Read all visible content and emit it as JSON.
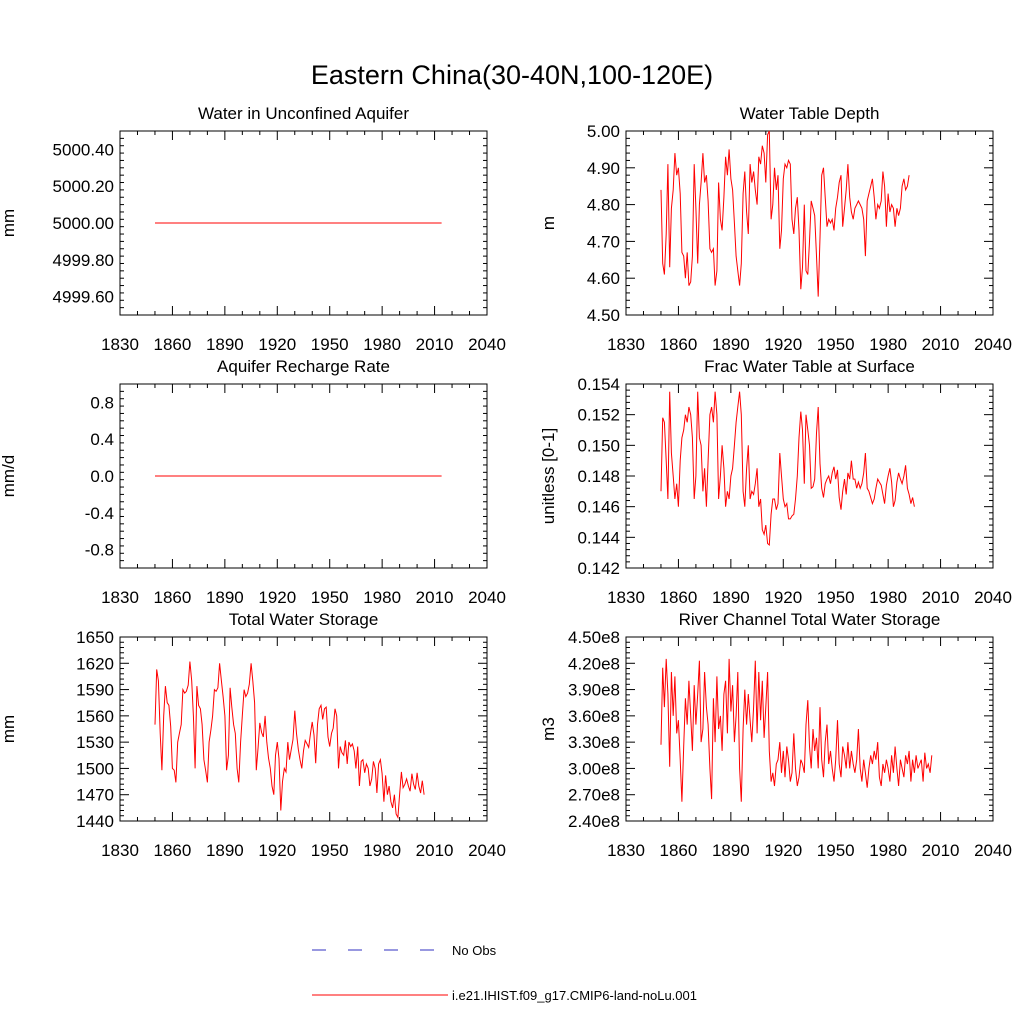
{
  "title": "Eastern China(30-40N,100-120E)",
  "colors": {
    "model": "#ff0000",
    "obs": "#3030c0",
    "axis": "#000000"
  },
  "legend": {
    "obs_label": "No Obs",
    "model_label": "i.e21.IHIST.f09_g17.CMIP6-land-noLu.001"
  },
  "chart_data": [
    {
      "type": "line",
      "title": "Water in Unconfined Aquifer",
      "ylabel": "mm",
      "xlim": [
        1830,
        2040
      ],
      "ylim": [
        4999.5,
        5000.5
      ],
      "xticks": [
        1830,
        1860,
        1890,
        1920,
        1950,
        1980,
        2010,
        2040
      ],
      "xtick_labels": [
        "1830",
        "1860",
        "1890",
        "1920",
        "1950",
        "1980",
        "2010",
        "2040"
      ],
      "yticks": [
        4999.6,
        4999.8,
        5000.0,
        5000.2,
        5000.4
      ],
      "ytick_labels": [
        "4999.60",
        "4999.80",
        "5000.00",
        "5000.20",
        "5000.40"
      ],
      "series": [
        {
          "x_start": 1850,
          "values": [
            5000.0,
            5000.0
          ],
          "x": [
            1850,
            2014
          ]
        }
      ]
    },
    {
      "type": "line",
      "title": "Water Table Depth",
      "ylabel": "m",
      "xlim": [
        1830,
        2040
      ],
      "ylim": [
        4.5,
        5.0
      ],
      "xticks": [
        1830,
        1860,
        1890,
        1920,
        1950,
        1980,
        2010,
        2040
      ],
      "xtick_labels": [
        "1830",
        "1860",
        "1890",
        "1920",
        "1950",
        "1980",
        "2010",
        "2040"
      ],
      "yticks": [
        4.5,
        4.6,
        4.7,
        4.8,
        4.9,
        5.0
      ],
      "ytick_labels": [
        "4.50",
        "4.60",
        "4.70",
        "4.80",
        "4.90",
        "5.00"
      ],
      "series": [
        {
          "x_start": 1850,
          "values": [
            4.84,
            4.64,
            4.61,
            4.72,
            4.91,
            4.63,
            4.79,
            4.84,
            4.94,
            4.88,
            4.9,
            4.83,
            4.67,
            4.66,
            4.6,
            4.67,
            4.58,
            4.59,
            4.66,
            4.91,
            4.79,
            4.64,
            4.8,
            4.86,
            4.94,
            4.86,
            4.88,
            4.81,
            4.68,
            4.67,
            4.68,
            4.58,
            4.62,
            4.86,
            4.76,
            4.73,
            4.82,
            4.93,
            4.88,
            4.95,
            4.87,
            4.84,
            4.75,
            4.66,
            4.62,
            4.58,
            4.64,
            4.83,
            4.89,
            4.78,
            4.72,
            4.91,
            4.86,
            4.89,
            4.84,
            4.8,
            4.93,
            4.91,
            4.96,
            4.94,
            4.86,
            4.99,
            5.0,
            4.76,
            4.8,
            4.9,
            4.84,
            4.88,
            4.68,
            4.73,
            4.87,
            4.91,
            4.9,
            4.92,
            4.91,
            4.76,
            4.72,
            4.79,
            4.82,
            4.73,
            4.57,
            4.63,
            4.8,
            4.62,
            4.61,
            4.7,
            4.81,
            4.79,
            4.77,
            4.66,
            4.55,
            4.71,
            4.88,
            4.9,
            4.82,
            4.74,
            4.76,
            4.75,
            4.76,
            4.73,
            4.79,
            4.82,
            4.86,
            4.88,
            4.74,
            4.79,
            4.84,
            4.91,
            4.82,
            4.78,
            4.76,
            4.79,
            4.8,
            4.81,
            4.8,
            4.79,
            4.76,
            4.66,
            4.81,
            4.83,
            4.85,
            4.87,
            4.82,
            4.76,
            4.8,
            4.79,
            4.81,
            4.89,
            4.85,
            4.74,
            4.83,
            4.78,
            4.8,
            4.79,
            4.74,
            4.79,
            4.77,
            4.79,
            4.85,
            4.87,
            4.84,
            4.85,
            4.88
          ]
        }
      ]
    },
    {
      "type": "line",
      "title": "Aquifer Recharge Rate",
      "ylabel": "mm/d",
      "xlim": [
        1830,
        2040
      ],
      "ylim": [
        -1.0,
        1.0
      ],
      "xticks": [
        1830,
        1860,
        1890,
        1920,
        1950,
        1980,
        2010,
        2040
      ],
      "xtick_labels": [
        "1830",
        "1860",
        "1890",
        "1920",
        "1950",
        "1980",
        "2010",
        "2040"
      ],
      "yticks": [
        -0.8,
        -0.4,
        0.0,
        0.4,
        0.8
      ],
      "ytick_labels": [
        "-0.8",
        "-0.4",
        "0.0",
        "0.4",
        "0.8"
      ],
      "series": [
        {
          "values": [
            0.0,
            0.0
          ],
          "x": [
            1850,
            2014
          ]
        }
      ]
    },
    {
      "type": "line",
      "title": "Frac Water Table at Surface",
      "ylabel": "unitless [0-1]",
      "xlim": [
        1830,
        2040
      ],
      "ylim": [
        0.142,
        0.154
      ],
      "xticks": [
        1830,
        1860,
        1890,
        1920,
        1950,
        1980,
        2010,
        2040
      ],
      "xtick_labels": [
        "1830",
        "1860",
        "1890",
        "1920",
        "1950",
        "1980",
        "2010",
        "2040"
      ],
      "yticks": [
        0.142,
        0.144,
        0.146,
        0.148,
        0.15,
        0.152,
        0.154
      ],
      "ytick_labels": [
        "0.142",
        "0.144",
        "0.146",
        "0.148",
        "0.150",
        "0.152",
        "0.154"
      ],
      "series": [
        {
          "x_start": 1850,
          "values": [
            0.147,
            0.1518,
            0.1515,
            0.149,
            0.1465,
            0.1535,
            0.1495,
            0.148,
            0.1465,
            0.1475,
            0.146,
            0.149,
            0.1505,
            0.151,
            0.152,
            0.1515,
            0.1525,
            0.152,
            0.1505,
            0.1465,
            0.148,
            0.1535,
            0.1505,
            0.15,
            0.147,
            0.1485,
            0.146,
            0.149,
            0.152,
            0.1525,
            0.1515,
            0.1535,
            0.152,
            0.1465,
            0.148,
            0.15,
            0.1485,
            0.146,
            0.147,
            0.1465,
            0.148,
            0.1485,
            0.15,
            0.1515,
            0.1525,
            0.1535,
            0.152,
            0.147,
            0.146,
            0.1485,
            0.15,
            0.1465,
            0.147,
            0.1468,
            0.1475,
            0.1485,
            0.146,
            0.1465,
            0.1445,
            0.1442,
            0.1448,
            0.1436,
            0.1435,
            0.1455,
            0.1465,
            0.1465,
            0.1458,
            0.1462,
            0.1495,
            0.148,
            0.1465,
            0.146,
            0.1462,
            0.1452,
            0.1452,
            0.1454,
            0.1455,
            0.1465,
            0.148,
            0.1505,
            0.1522,
            0.151,
            0.1475,
            0.152,
            0.151,
            0.15,
            0.1472,
            0.1473,
            0.1478,
            0.1508,
            0.1525,
            0.1488,
            0.1472,
            0.1466,
            0.1475,
            0.1478,
            0.148,
            0.1475,
            0.1482,
            0.1486,
            0.1478,
            0.1484,
            0.1466,
            0.1458,
            0.147,
            0.1478,
            0.1468,
            0.1482,
            0.1478,
            0.149,
            0.1478,
            0.1478,
            0.1472,
            0.1476,
            0.1472,
            0.1475,
            0.1482,
            0.1495,
            0.1472,
            0.147,
            0.1466,
            0.1462,
            0.1465,
            0.1472,
            0.1478,
            0.1476,
            0.1474,
            0.1468,
            0.1462,
            0.1474,
            0.148,
            0.1485,
            0.1476,
            0.146,
            0.1464,
            0.1476,
            0.1482,
            0.1478,
            0.1475,
            0.148,
            0.1487,
            0.1472,
            0.1468,
            0.1462,
            0.1466,
            0.146
          ]
        }
      ]
    },
    {
      "type": "line",
      "title": "Total Water Storage",
      "ylabel": "mm",
      "xlim": [
        1830,
        2040
      ],
      "ylim": [
        1440,
        1650
      ],
      "xticks": [
        1830,
        1860,
        1890,
        1920,
        1950,
        1980,
        2010,
        2040
      ],
      "xtick_labels": [
        "1830",
        "1860",
        "1890",
        "1920",
        "1950",
        "1980",
        "2010",
        "2040"
      ],
      "yticks": [
        1440,
        1470,
        1500,
        1530,
        1560,
        1590,
        1620,
        1650
      ],
      "ytick_labels": [
        "1440",
        "1470",
        "1500",
        "1530",
        "1560",
        "1590",
        "1620",
        "1650"
      ],
      "series": [
        {
          "x_start": 1850,
          "values": [
            1550,
            1613,
            1600,
            1540,
            1498,
            1560,
            1594,
            1575,
            1572,
            1548,
            1500,
            1498,
            1484,
            1530,
            1540,
            1550,
            1590,
            1586,
            1588,
            1595,
            1622,
            1600,
            1560,
            1500,
            1594,
            1572,
            1568,
            1550,
            1510,
            1498,
            1484,
            1530,
            1544,
            1560,
            1590,
            1588,
            1592,
            1620,
            1600,
            1582,
            1560,
            1498,
            1515,
            1592,
            1570,
            1550,
            1540,
            1500,
            1484,
            1530,
            1560,
            1590,
            1582,
            1586,
            1596,
            1620,
            1600,
            1575,
            1498,
            1524,
            1552,
            1541,
            1536,
            1560,
            1530,
            1512,
            1500,
            1480,
            1470,
            1515,
            1530,
            1511,
            1452,
            1485,
            1500,
            1496,
            1530,
            1510,
            1522,
            1533,
            1566,
            1540,
            1522,
            1510,
            1500,
            1520,
            1532,
            1528,
            1524,
            1540,
            1553,
            1538,
            1506,
            1550,
            1568,
            1572,
            1556,
            1568,
            1570,
            1536,
            1525,
            1540,
            1546,
            1568,
            1560,
            1500,
            1525,
            1518,
            1515,
            1532,
            1505,
            1530,
            1525,
            1528,
            1520,
            1500,
            1525,
            1480,
            1508,
            1510,
            1495,
            1505,
            1500,
            1480,
            1488,
            1508,
            1500,
            1472,
            1505,
            1510,
            1494,
            1462,
            1492,
            1470,
            1480,
            1462,
            1455,
            1470,
            1448,
            1444,
            1470,
            1496,
            1478,
            1482,
            1488,
            1480,
            1474,
            1494,
            1482,
            1476,
            1495,
            1480,
            1472,
            1486,
            1470
          ]
        }
      ]
    },
    {
      "type": "line",
      "title": "River Channel Total Water Storage",
      "ylabel": "m3",
      "xlim": [
        1830,
        2040
      ],
      "ylim": [
        240000000.0,
        450000000.0
      ],
      "xticks": [
        1830,
        1860,
        1890,
        1920,
        1950,
        1980,
        2010,
        2040
      ],
      "xtick_labels": [
        "1830",
        "1860",
        "1890",
        "1920",
        "1950",
        "1980",
        "2010",
        "2040"
      ],
      "yticks": [
        240000000.0,
        270000000.0,
        300000000.0,
        330000000.0,
        360000000.0,
        390000000.0,
        420000000.0,
        450000000.0
      ],
      "ytick_labels": [
        "2.40e8",
        "2.70e8",
        "3.00e8",
        "3.30e8",
        "3.60e8",
        "3.90e8",
        "4.20e8",
        "4.50e8"
      ],
      "series": [
        {
          "x_start": 1850,
          "values": [
            327000000.0,
            415000000.0,
            370000000.0,
            425000000.0,
            385000000.0,
            302000000.0,
            410000000.0,
            360000000.0,
            405000000.0,
            340000000.0,
            355000000.0,
            310000000.0,
            262000000.0,
            325000000.0,
            380000000.0,
            350000000.0,
            400000000.0,
            360000000.0,
            320000000.0,
            395000000.0,
            350000000.0,
            385000000.0,
            423000000.0,
            330000000.0,
            345000000.0,
            410000000.0,
            370000000.0,
            350000000.0,
            300000000.0,
            265000000.0,
            380000000.0,
            330000000.0,
            405000000.0,
            345000000.0,
            360000000.0,
            320000000.0,
            385000000.0,
            400000000.0,
            340000000.0,
            425000000.0,
            365000000.0,
            395000000.0,
            330000000.0,
            360000000.0,
            410000000.0,
            300000000.0,
            262000000.0,
            345000000.0,
            390000000.0,
            350000000.0,
            385000000.0,
            355000000.0,
            330000000.0,
            370000000.0,
            423000000.0,
            340000000.0,
            410000000.0,
            355000000.0,
            400000000.0,
            335000000.0,
            370000000.0,
            410000000.0,
            320000000.0,
            285000000.0,
            295000000.0,
            280000000.0,
            305000000.0,
            310000000.0,
            330000000.0,
            295000000.0,
            320000000.0,
            290000000.0,
            325000000.0,
            310000000.0,
            285000000.0,
            295000000.0,
            340000000.0,
            300000000.0,
            280000000.0,
            290000000.0,
            310000000.0,
            305000000.0,
            295000000.0,
            350000000.0,
            378000000.0,
            325000000.0,
            300000000.0,
            345000000.0,
            320000000.0,
            335000000.0,
            300000000.0,
            370000000.0,
            310000000.0,
            290000000.0,
            330000000.0,
            350000000.0,
            305000000.0,
            320000000.0,
            300000000.0,
            285000000.0,
            310000000.0,
            355000000.0,
            305000000.0,
            290000000.0,
            325000000.0,
            315000000.0,
            300000000.0,
            330000000.0,
            300000000.0,
            320000000.0,
            305000000.0,
            295000000.0,
            310000000.0,
            345000000.0,
            300000000.0,
            285000000.0,
            310000000.0,
            295000000.0,
            278000000.0,
            300000000.0,
            315000000.0,
            305000000.0,
            320000000.0,
            310000000.0,
            330000000.0,
            290000000.0,
            280000000.0,
            305000000.0,
            295000000.0,
            310000000.0,
            300000000.0,
            285000000.0,
            315000000.0,
            295000000.0,
            325000000.0,
            300000000.0,
            280000000.0,
            310000000.0,
            300000000.0,
            290000000.0,
            315000000.0,
            305000000.0,
            320000000.0,
            285000000.0,
            310000000.0,
            295000000.0,
            315000000.0,
            300000000.0,
            305000000.0,
            310000000.0,
            285000000.0,
            318000000.0,
            300000000.0,
            305000000.0,
            295000000.0,
            315000000.0
          ]
        }
      ]
    }
  ]
}
